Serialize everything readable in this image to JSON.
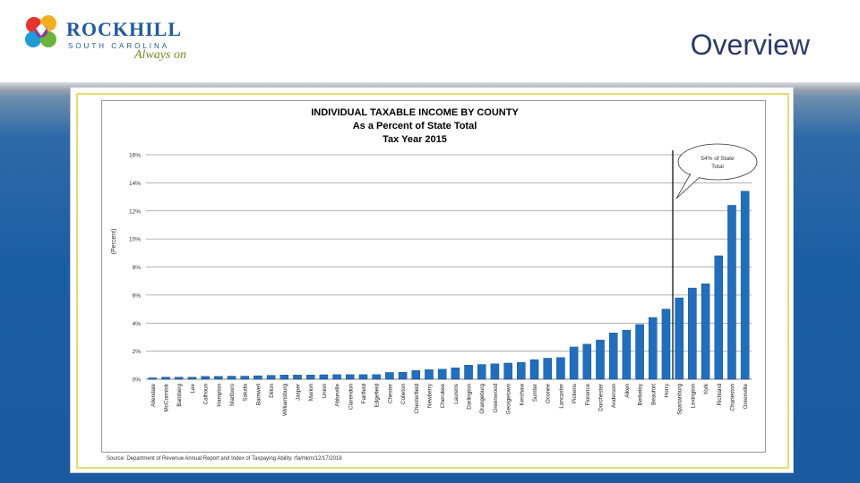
{
  "header": {
    "logo_main": "ROCKHILL",
    "logo_sub": "SOUTH CAROLINA",
    "logo_tagline": "Always on",
    "title": "Overview"
  },
  "chart_data": {
    "type": "bar",
    "title": [
      "INDIVIDUAL TAXABLE INCOME BY COUNTY",
      "As a Percent of State Total",
      "Tax Year 2015"
    ],
    "ylabel": "(Percent)",
    "ylim": [
      0,
      16
    ],
    "yticks": [
      "0%",
      "2%",
      "4%",
      "6%",
      "8%",
      "10%",
      "12%",
      "14%",
      "16%"
    ],
    "annotation": "54% of State Total",
    "source": "Source: Department of Revenue Annual Report and Index of Taxpaying Ability. rfa/mkm/12/17/2018",
    "bar_color": "#1f6fc0",
    "categories": [
      "Allendale",
      "McCormick",
      "Bamberg",
      "Lee",
      "Calhoun",
      "Hampton",
      "Marlboro",
      "Saluda",
      "Barnwell",
      "Dillon",
      "Williamsburg",
      "Jasper",
      "Marion",
      "Union",
      "Abbeville",
      "Clarendon",
      "Fairfield",
      "Edgefield",
      "Chester",
      "Colleton",
      "Chesterfield",
      "Newberry",
      "Cherokee",
      "Laurens",
      "Darlington",
      "Orangeburg",
      "Greenwood",
      "Georgetown",
      "Kershaw",
      "Sumter",
      "Oconee",
      "Lancaster",
      "Pickens",
      "Florence",
      "Dorchester",
      "Anderson",
      "Aiken",
      "Berkeley",
      "Beaufort",
      "Horry",
      "Spartanburg",
      "Lexington",
      "York",
      "Richland",
      "Charleston",
      "Greenville"
    ],
    "values": [
      0.1,
      0.15,
      0.15,
      0.15,
      0.2,
      0.2,
      0.22,
      0.22,
      0.25,
      0.28,
      0.3,
      0.3,
      0.3,
      0.32,
      0.33,
      0.33,
      0.33,
      0.33,
      0.48,
      0.5,
      0.62,
      0.68,
      0.72,
      0.82,
      1.0,
      1.05,
      1.1,
      1.15,
      1.2,
      1.4,
      1.5,
      1.55,
      2.3,
      2.5,
      2.8,
      3.3,
      3.5,
      3.9,
      4.4,
      5.0,
      5.8,
      6.5,
      6.8,
      8.8,
      12.4,
      13.4
    ]
  }
}
